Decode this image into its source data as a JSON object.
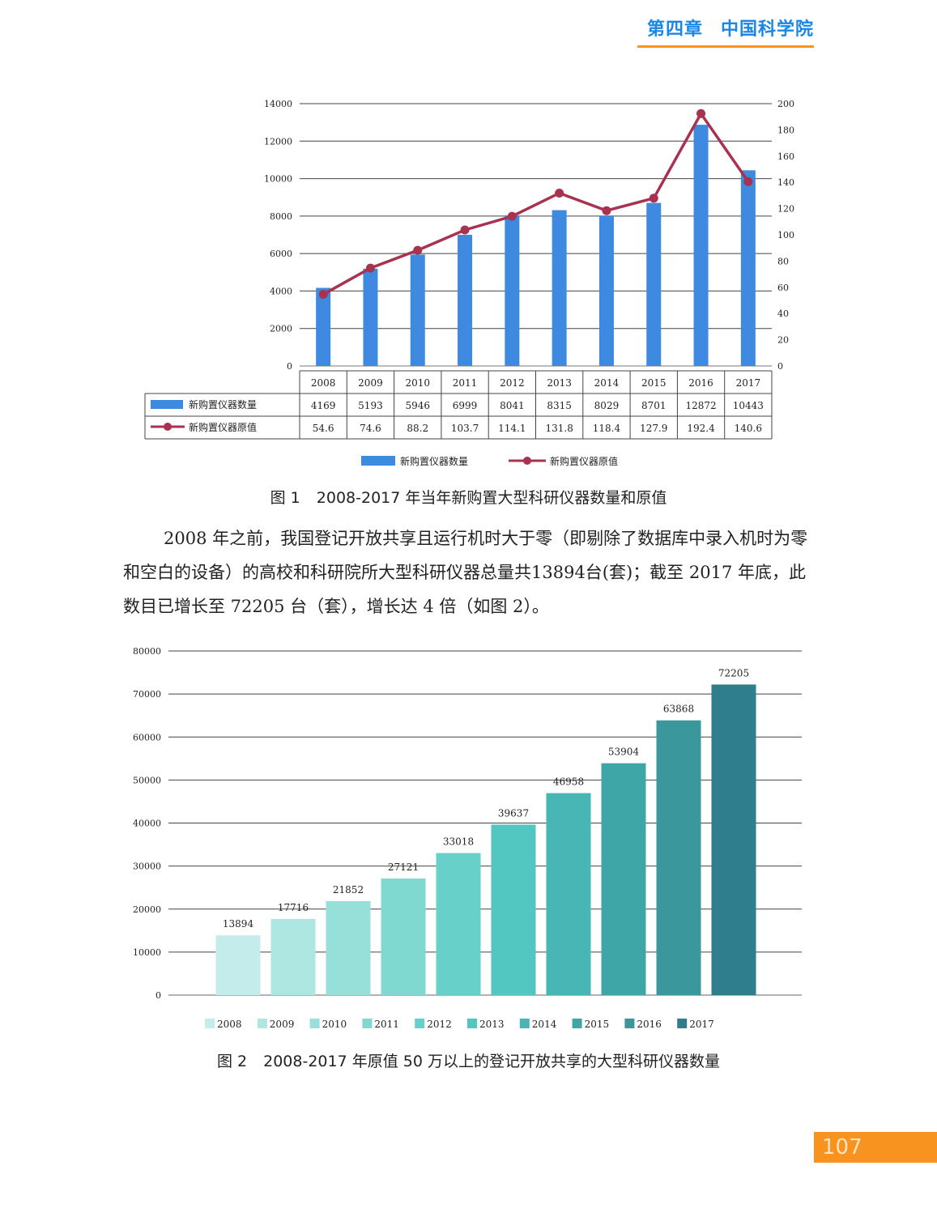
{
  "header": {
    "chapter": "第四章",
    "institution": "中国科学院"
  },
  "page_number": "107",
  "paragraph": "2008 年之前，我国登记开放共享且运行机时大于零（即剔除了数据库中录入机时为零和空白的设备）的高校和科研院所大型科研仪器总量共13894台(套)；截至 2017 年底，此数目已增长至 72205 台（套），增长达 4 倍（如图 2）。",
  "colors": {
    "accent": "#1a86e6",
    "orange": "#f7931e",
    "bar_blue": "#3d8ae0",
    "line_red": "#a8324f"
  },
  "chart_data": [
    {
      "type": "bar",
      "caption_label": "图 1",
      "caption_title": "2008-2017 年当年新购置大型科研仪器数量和原值",
      "categories": [
        "2008",
        "2009",
        "2010",
        "2011",
        "2012",
        "2013",
        "2014",
        "2015",
        "2016",
        "2017"
      ],
      "series": [
        {
          "name": "新购置仪器数量",
          "type": "bar",
          "axis": "left",
          "values": [
            4169,
            5193,
            5946,
            6999,
            8041,
            8315,
            8029,
            8701,
            12872,
            10443
          ]
        },
        {
          "name": "新购置仪器原值",
          "type": "line",
          "axis": "right",
          "values": [
            54.6,
            74.6,
            88.2,
            103.7,
            114.1,
            131.8,
            118.4,
            127.9,
            192.4,
            140.6
          ]
        }
      ],
      "ylim": [
        0,
        14000
      ],
      "y_ticks": [
        0,
        2000,
        4000,
        6000,
        8000,
        10000,
        12000,
        14000
      ],
      "y2lim": [
        0,
        200
      ],
      "y2_ticks": [
        0,
        20,
        40,
        60,
        80,
        100,
        120,
        140,
        160,
        180,
        200
      ],
      "grid": true,
      "legend": "bottom",
      "data_table": true
    },
    {
      "type": "bar",
      "caption_label": "图 2",
      "caption_title": "2008-2017 年原值 50 万以上的登记开放共享的大型科研仪器数量",
      "categories": [
        "2008",
        "2009",
        "2010",
        "2011",
        "2012",
        "2013",
        "2014",
        "2015",
        "2016",
        "2017"
      ],
      "values": [
        13894,
        17716,
        21852,
        27121,
        33018,
        39637,
        46958,
        53904,
        63868,
        72205
      ],
      "colors": [
        "#c4ecea",
        "#aee6e2",
        "#97e0da",
        "#80d9d1",
        "#66d0c9",
        "#52c6c1",
        "#47b6b5",
        "#3fa6a8",
        "#3a989d",
        "#2f7e8e"
      ],
      "ylim": [
        0,
        80000
      ],
      "y_ticks": [
        0,
        10000,
        20000,
        30000,
        40000,
        50000,
        60000,
        70000,
        80000
      ],
      "grid": true,
      "legend": "bottom"
    }
  ]
}
